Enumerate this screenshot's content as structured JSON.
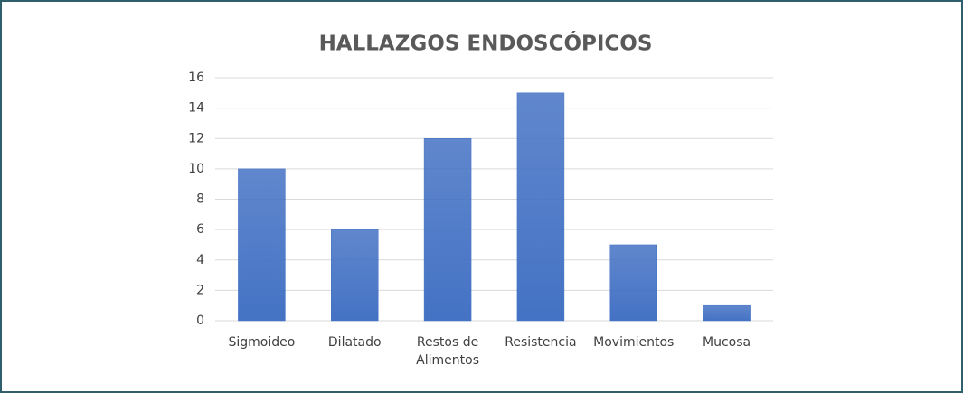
{
  "chart_data": {
    "type": "bar",
    "title": "HALLAZGOS ENDOSCÓPICOS",
    "categories": [
      "Sigmoideo",
      "Dilatado",
      "Restos de Alimentos",
      "Resistencia",
      "Movimientos",
      "Mucosa"
    ],
    "values": [
      10,
      6,
      12,
      15,
      5,
      1
    ],
    "color": "#4472c4",
    "ylim": [
      0,
      16
    ],
    "yticks": [
      0,
      2,
      4,
      6,
      8,
      10,
      12,
      14,
      16
    ],
    "grid": true
  }
}
